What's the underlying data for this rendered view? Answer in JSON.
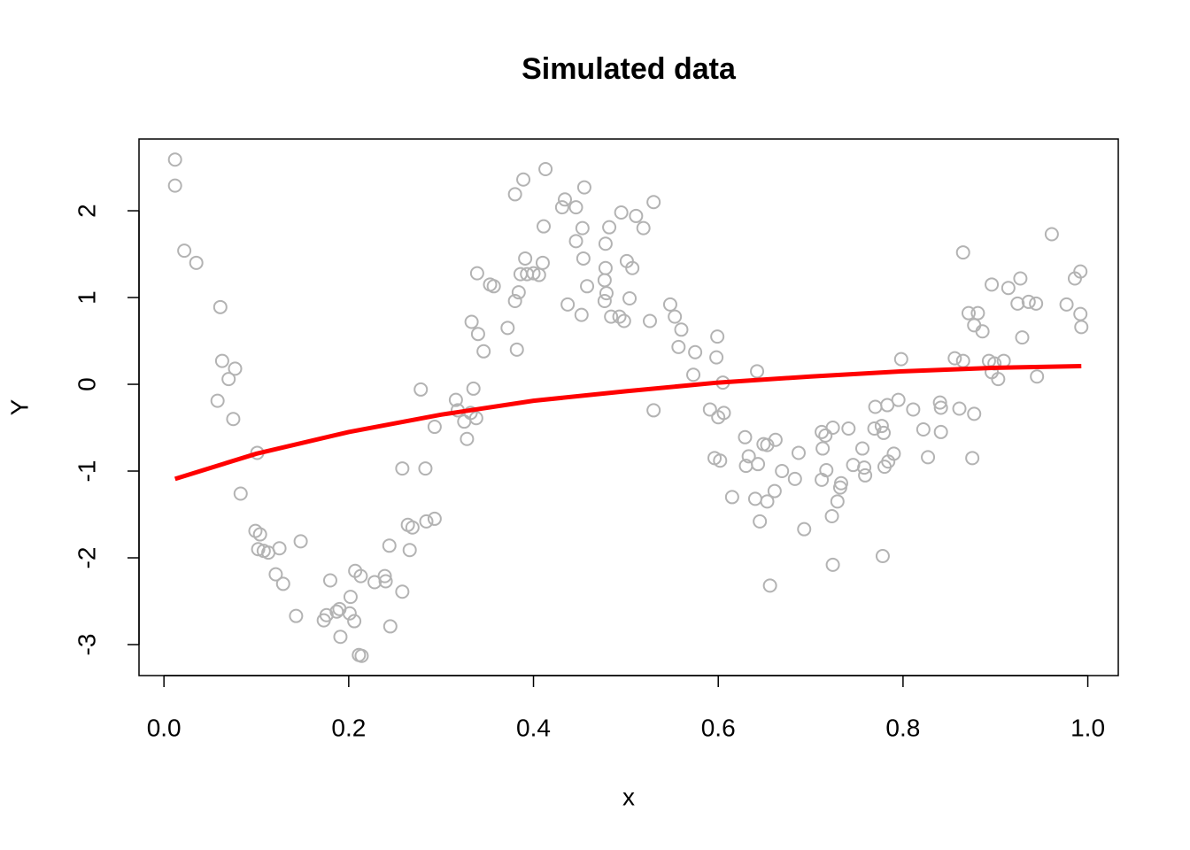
{
  "chart_data": {
    "type": "scatter",
    "title": "Simulated data",
    "x_label": "x",
    "y_label": "Y",
    "xlim": [
      -0.027,
      1.033
    ],
    "ylim": [
      -3.357,
      2.827
    ],
    "xticks": [
      {
        "value": 0,
        "label": "0.0"
      },
      0.2,
      0.4,
      0.6,
      0.8,
      {
        "value": 1,
        "label": "1.0"
      }
    ],
    "yticks": [
      -3,
      -2,
      -1,
      0,
      1,
      2
    ],
    "series": [
      {
        "type": "scatter",
        "color": "#b3b3b3",
        "x": [
          0.012,
          0.012,
          0.022,
          0.035,
          0.061,
          0.063,
          0.077,
          0.07,
          0.058,
          0.075,
          0.101,
          0.083,
          0.099,
          0.104,
          0.102,
          0.108,
          0.113,
          0.125,
          0.148,
          0.121,
          0.129,
          0.143,
          0.173,
          0.176,
          0.187,
          0.19,
          0.18,
          0.191,
          0.201,
          0.202,
          0.206,
          0.207,
          0.213,
          0.211,
          0.214,
          0.228,
          0.239,
          0.24,
          0.244,
          0.245,
          0.258,
          0.258,
          0.264,
          0.269,
          0.266,
          0.284,
          0.293,
          0.283,
          0.278,
          0.293,
          0.316,
          0.318,
          0.325,
          0.328,
          0.332,
          0.338,
          0.335,
          0.333,
          0.34,
          0.346,
          0.339,
          0.353,
          0.357,
          0.372,
          0.382,
          0.38,
          0.384,
          0.386,
          0.393,
          0.391,
          0.38,
          0.389,
          0.406,
          0.41,
          0.411,
          0.413,
          0.4,
          0.431,
          0.434,
          0.446,
          0.437,
          0.446,
          0.453,
          0.455,
          0.454,
          0.458,
          0.452,
          0.478,
          0.478,
          0.482,
          0.477,
          0.479,
          0.477,
          0.484,
          0.493,
          0.498,
          0.495,
          0.501,
          0.507,
          0.504,
          0.511,
          0.519,
          0.53,
          0.526,
          0.53,
          0.548,
          0.553,
          0.56,
          0.557,
          0.575,
          0.573,
          0.599,
          0.598,
          0.591,
          0.6,
          0.606,
          0.605,
          0.596,
          0.602,
          0.615,
          0.629,
          0.633,
          0.63,
          0.643,
          0.642,
          0.64,
          0.645,
          0.649,
          0.653,
          0.653,
          0.656,
          0.662,
          0.661,
          0.669,
          0.683,
          0.687,
          0.693,
          0.712,
          0.716,
          0.713,
          0.717,
          0.712,
          0.724,
          0.733,
          0.732,
          0.729,
          0.723,
          0.724,
          0.741,
          0.746,
          0.756,
          0.758,
          0.759,
          0.769,
          0.77,
          0.777,
          0.779,
          0.783,
          0.78,
          0.784,
          0.79,
          0.778,
          0.795,
          0.798,
          0.811,
          0.822,
          0.827,
          0.84,
          0.841,
          0.841,
          0.856,
          0.861,
          0.865,
          0.865,
          0.871,
          0.877,
          0.881,
          0.886,
          0.877,
          0.875,
          0.893,
          0.896,
          0.896,
          0.899,
          0.903,
          0.909,
          0.914,
          0.924,
          0.927,
          0.929,
          0.936,
          0.944,
          0.945,
          0.961,
          0.977,
          0.986,
          0.992,
          0.992,
          0.993
        ],
        "values": [
          2.59,
          2.29,
          1.54,
          1.4,
          0.89,
          0.27,
          0.18,
          0.06,
          -0.19,
          -0.4,
          -0.79,
          -1.26,
          -1.69,
          -1.73,
          -1.9,
          -1.92,
          -1.94,
          -1.89,
          -1.81,
          -2.19,
          -2.3,
          -2.67,
          -2.72,
          -2.66,
          -2.62,
          -2.59,
          -2.26,
          -2.91,
          -2.64,
          -2.45,
          -2.73,
          -2.15,
          -2.21,
          -3.12,
          -3.13,
          -2.28,
          -2.21,
          -2.27,
          -1.86,
          -2.79,
          -2.39,
          -0.97,
          -1.62,
          -1.65,
          -1.91,
          -1.58,
          -1.55,
          -0.97,
          -0.06,
          -0.49,
          -0.18,
          -0.3,
          -0.43,
          -0.63,
          -0.33,
          -0.39,
          -0.05,
          0.72,
          0.58,
          0.38,
          1.28,
          1.15,
          1.13,
          0.65,
          0.4,
          0.96,
          1.06,
          1.27,
          1.27,
          1.45,
          2.19,
          2.36,
          1.26,
          1.4,
          1.82,
          2.48,
          1.28,
          2.04,
          2.13,
          2.04,
          0.92,
          1.65,
          1.8,
          2.27,
          1.45,
          1.13,
          0.8,
          1.62,
          1.34,
          1.81,
          1.2,
          1.05,
          0.96,
          0.78,
          0.78,
          0.73,
          1.98,
          1.42,
          1.34,
          0.99,
          1.94,
          1.8,
          2.1,
          0.73,
          -0.3,
          0.92,
          0.78,
          0.63,
          0.43,
          0.37,
          0.11,
          0.55,
          0.31,
          -0.29,
          -0.38,
          -0.33,
          0.02,
          -0.85,
          -0.88,
          -1.3,
          -0.61,
          -0.83,
          -0.94,
          -0.92,
          0.15,
          -1.32,
          -1.58,
          -0.69,
          -0.7,
          -1.35,
          -2.32,
          -0.64,
          -1.23,
          -1.0,
          -1.09,
          -0.79,
          -1.67,
          -0.55,
          -0.59,
          -0.74,
          -0.99,
          -1.1,
          -0.5,
          -1.14,
          -1.19,
          -1.35,
          -1.52,
          -2.08,
          -0.51,
          -0.93,
          -0.74,
          -0.96,
          -1.05,
          -0.51,
          -0.26,
          -0.48,
          -0.56,
          -0.24,
          -0.95,
          -0.89,
          -0.8,
          -1.98,
          -0.18,
          0.29,
          -0.29,
          -0.52,
          -0.84,
          -0.21,
          -0.27,
          -0.55,
          0.3,
          -0.28,
          1.52,
          0.27,
          0.82,
          0.68,
          0.82,
          0.61,
          -0.34,
          -0.85,
          0.27,
          1.15,
          0.14,
          0.24,
          0.06,
          0.27,
          1.11,
          0.93,
          1.22,
          0.54,
          0.95,
          0.93,
          0.09,
          1.73,
          0.92,
          1.22,
          1.3,
          0.81,
          0.66
        ]
      },
      {
        "type": "line",
        "color": "#ff0000",
        "x": [
          0.012,
          0.1,
          0.2,
          0.3,
          0.4,
          0.5,
          0.6,
          0.7,
          0.8,
          0.9,
          0.993
        ],
        "values": [
          -1.09,
          -0.8,
          -0.55,
          -0.35,
          -0.19,
          -0.08,
          0.02,
          0.09,
          0.15,
          0.19,
          0.21
        ]
      }
    ]
  }
}
